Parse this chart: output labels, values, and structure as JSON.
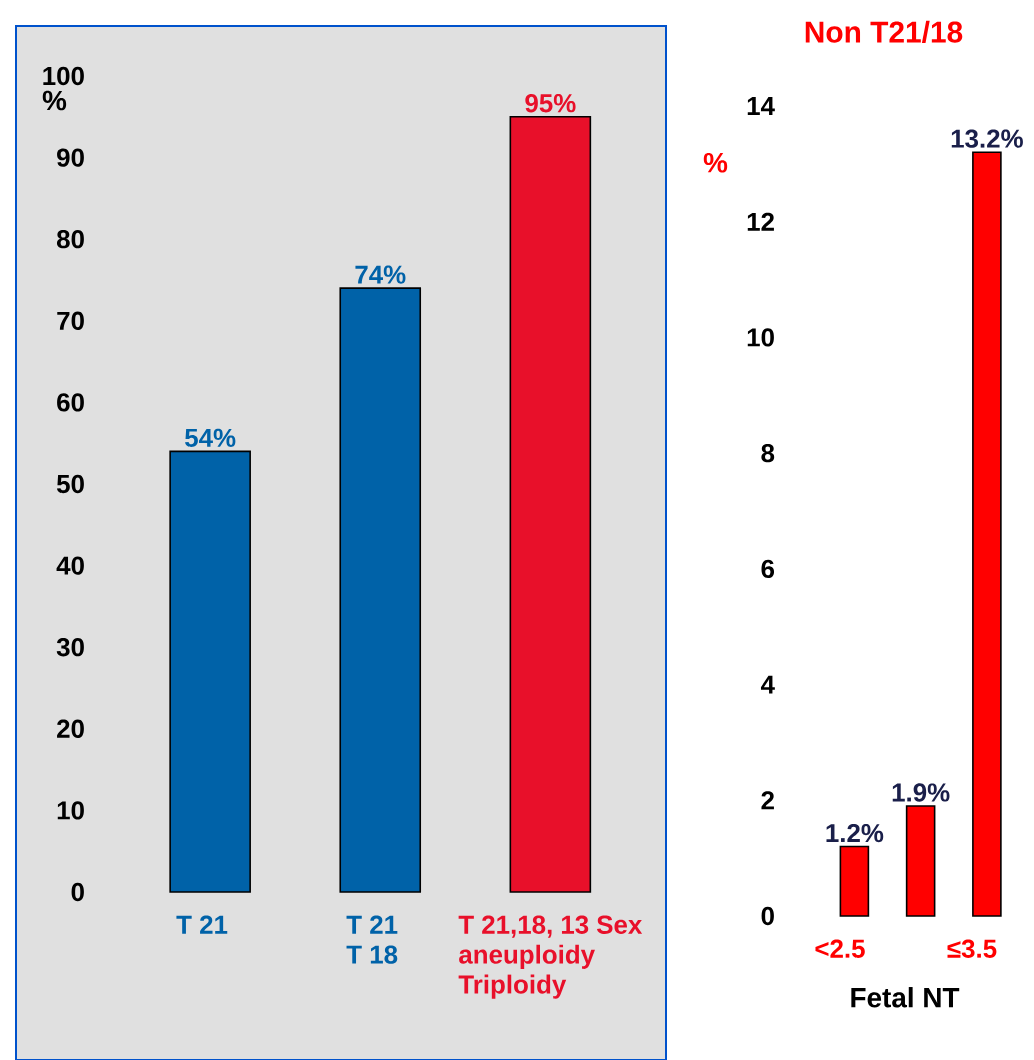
{
  "chart_data": [
    {
      "type": "bar",
      "ylabel": "%",
      "categories": [
        "T 21",
        "T 21 T 18",
        "T 21,18, 13 Sex aneuploidy Triploidy"
      ],
      "values": [
        54,
        74,
        95
      ],
      "colors": [
        "#0062a8",
        "#0062a8",
        "#e8102a"
      ],
      "value_labels": [
        "54%",
        "74%",
        "95%"
      ],
      "ylim": [
        0,
        100
      ],
      "yticks": [
        0,
        10,
        20,
        30,
        40,
        50,
        60,
        70,
        80,
        90,
        100
      ]
    },
    {
      "type": "bar",
      "title": "Non T21/18",
      "ylabel": "%",
      "xlabel": "Fetal NT",
      "categories": [
        "<2.5",
        null,
        "≤3.5"
      ],
      "values": [
        1.2,
        1.9,
        13.2
      ],
      "colors": [
        "#ff0000",
        "#ff0000",
        "#ff0000"
      ],
      "value_labels": [
        "1.2%",
        "1.9%",
        "13.2%"
      ],
      "ylim": [
        0,
        14
      ],
      "yticks": [
        0,
        2,
        4,
        6,
        8,
        10,
        12,
        14
      ]
    }
  ]
}
